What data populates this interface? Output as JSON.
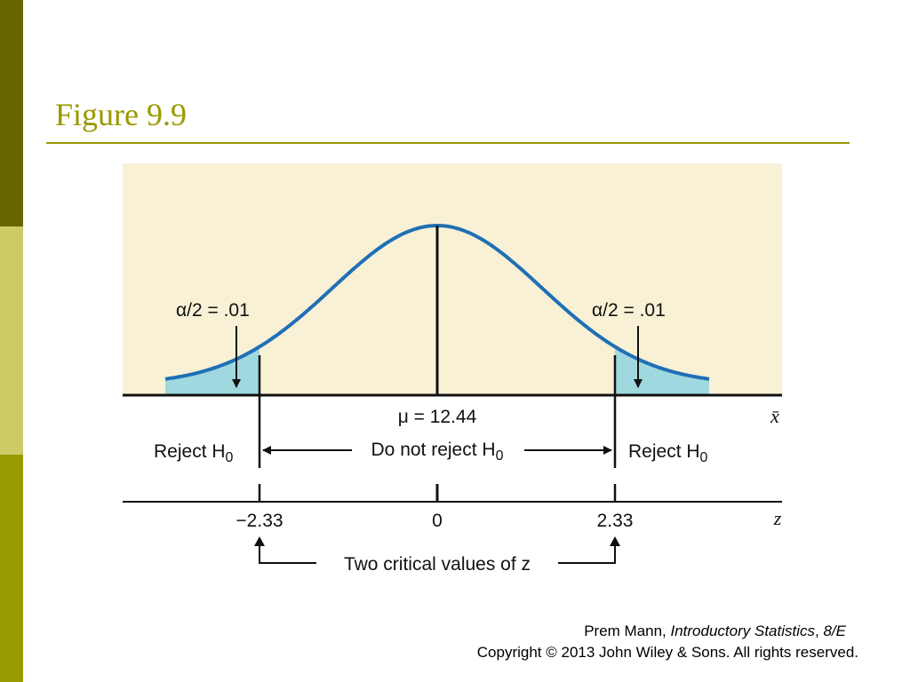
{
  "slide": {
    "title": "Figure 9.9",
    "colors": {
      "accent": "#999900",
      "sidebar_dark": "#666600",
      "sidebar_light": "#cccc66",
      "figure_background": "#f8f1d6",
      "curve": "#1f6fb5",
      "tail_fill": "#9fd8df"
    }
  },
  "figure": {
    "left_alpha": "α/2 = .01",
    "right_alpha": "α/2 = .01",
    "mean_label": "μ = 12.44",
    "xbar_axis_label": "x̄",
    "z_axis_label": "z",
    "reject_left": "Reject H0",
    "reject_right": "Reject H0",
    "do_not_reject": "Do not reject H0",
    "z_ticks": [
      "−2.33",
      "0",
      "2.33"
    ],
    "critical_caption": "Two critical values of z"
  },
  "credit": {
    "author": "Prem Mann, ",
    "book": "Introductory Statistics",
    "separator": ", ",
    "edition": "8/E",
    "copyright": "Copyright © 2013 John Wiley & Sons. All rights reserved."
  }
}
